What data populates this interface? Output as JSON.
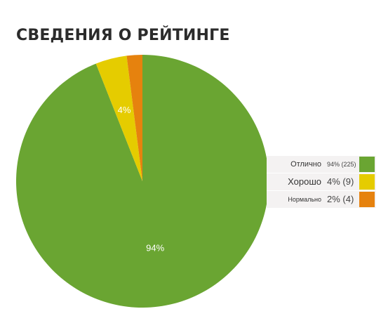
{
  "chart_data": {
    "type": "pie",
    "title": "СВЕДЕНИЯ О РЕЙТИНГЕ",
    "slices": [
      {
        "name": "Отлично",
        "percent": 94,
        "count": 225,
        "percent_label": "94%",
        "legend_value": "94% (225)",
        "color": "#6aa532"
      },
      {
        "name": "Хорошо",
        "percent": 4,
        "count": 9,
        "percent_label": "4%",
        "legend_value": "4% (9)",
        "color": "#e5cc00"
      },
      {
        "name": "Нормально",
        "percent": 2,
        "count": 4,
        "percent_label": "",
        "legend_value": "2% (4)",
        "color": "#e6820e"
      }
    ],
    "legend_position": "right"
  }
}
